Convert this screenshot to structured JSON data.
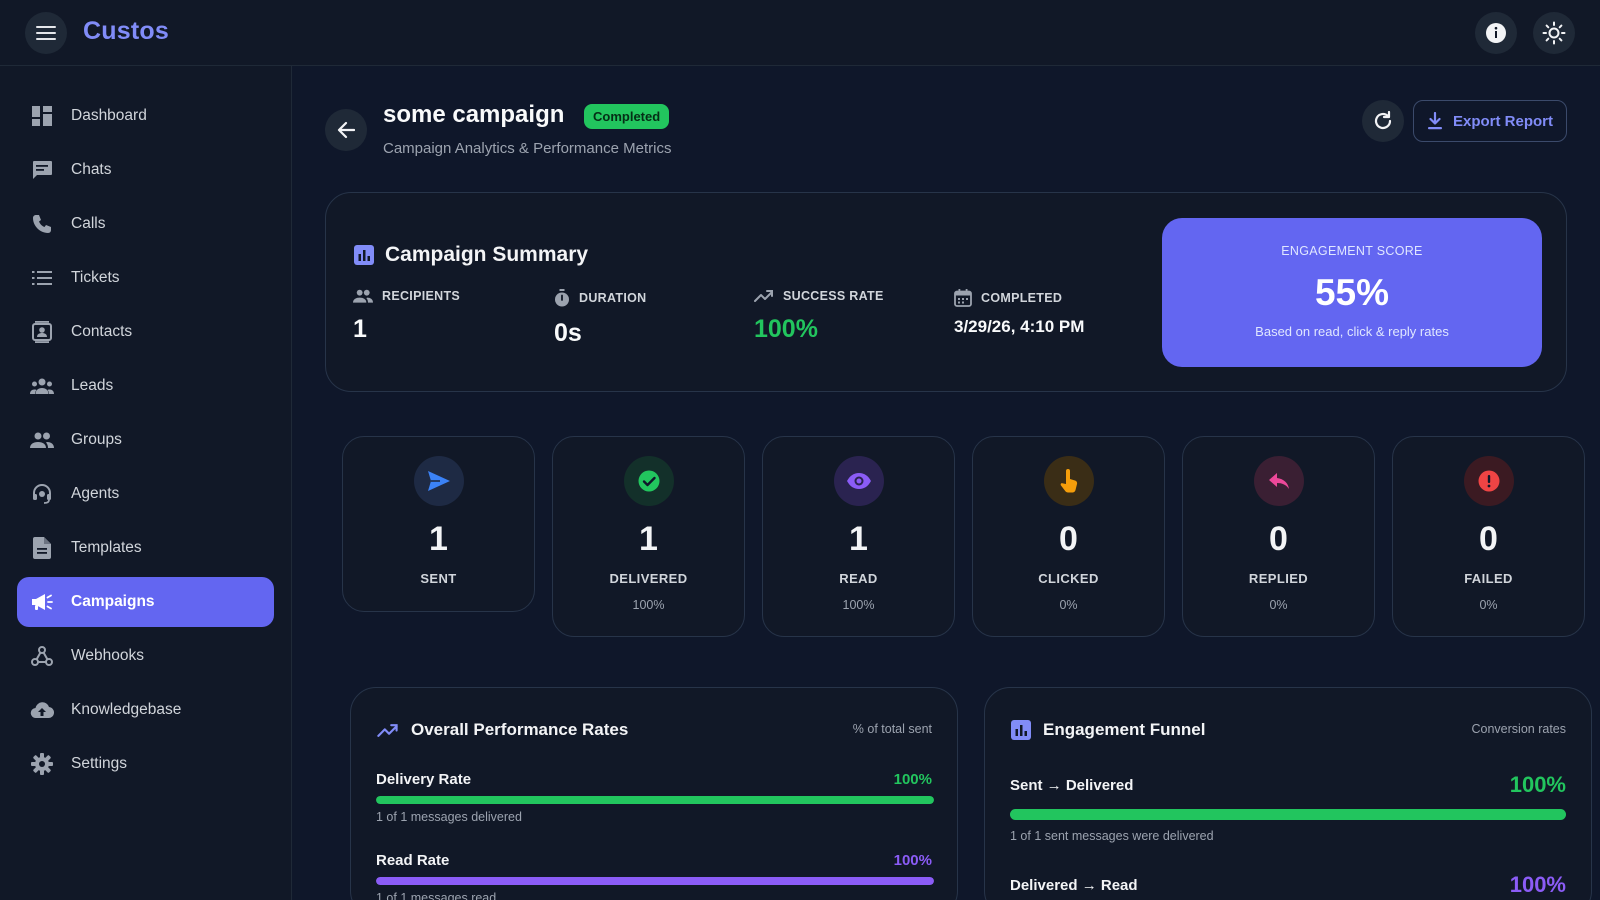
{
  "app": {
    "brand": "Custos"
  },
  "sidebar": {
    "items": [
      {
        "label": "Dashboard",
        "icon": "dashboard-icon"
      },
      {
        "label": "Chats",
        "icon": "chat-icon"
      },
      {
        "label": "Calls",
        "icon": "phone-icon"
      },
      {
        "label": "Tickets",
        "icon": "list-icon"
      },
      {
        "label": "Contacts",
        "icon": "contact-card-icon"
      },
      {
        "label": "Leads",
        "icon": "users-icon"
      },
      {
        "label": "Groups",
        "icon": "group-icon"
      },
      {
        "label": "Agents",
        "icon": "headset-icon"
      },
      {
        "label": "Templates",
        "icon": "document-icon"
      },
      {
        "label": "Campaigns",
        "icon": "megaphone-icon",
        "active": true
      },
      {
        "label": "Webhooks",
        "icon": "webhook-icon"
      },
      {
        "label": "Knowledgebase",
        "icon": "cloud-upload-icon"
      },
      {
        "label": "Settings",
        "icon": "gear-icon"
      }
    ]
  },
  "header": {
    "title": "some campaign",
    "status": "Completed",
    "subtitle": "Campaign Analytics & Performance Metrics",
    "export_label": "Export Report"
  },
  "summary": {
    "title": "Campaign Summary",
    "stats": {
      "recipients": {
        "label": "RECIPIENTS",
        "value": "1"
      },
      "duration": {
        "label": "DURATION",
        "value": "0s"
      },
      "success_rate": {
        "label": "SUCCESS RATE",
        "value": "100%"
      },
      "completed": {
        "label": "COMPLETED",
        "value": "3/29/26, 4:10 PM"
      }
    },
    "engagement": {
      "label": "ENGAGEMENT SCORE",
      "value": "55%",
      "note": "Based on read, click & reply rates"
    }
  },
  "metrics": [
    {
      "name": "SENT",
      "value": "1",
      "pct": "",
      "icon": "send-icon",
      "color": "#3b82f6"
    },
    {
      "name": "DELIVERED",
      "value": "1",
      "pct": "100%",
      "icon": "check-circle-icon",
      "color": "#22c55e"
    },
    {
      "name": "READ",
      "value": "1",
      "pct": "100%",
      "icon": "eye-icon",
      "color": "#8b5cf6"
    },
    {
      "name": "CLICKED",
      "value": "0",
      "pct": "0%",
      "icon": "pointer-icon",
      "color": "#f59e0b"
    },
    {
      "name": "REPLIED",
      "value": "0",
      "pct": "0%",
      "icon": "reply-icon",
      "color": "#ec4899"
    },
    {
      "name": "FAILED",
      "value": "0",
      "pct": "0%",
      "icon": "alert-icon",
      "color": "#ef4444"
    }
  ],
  "performance": {
    "title": "Overall Performance Rates",
    "note": "% of total sent",
    "rows": [
      {
        "label": "Delivery Rate",
        "value": "100%",
        "fill": 1.0,
        "color": "#22c55e",
        "note": "1 of 1 messages delivered"
      },
      {
        "label": "Read Rate",
        "value": "100%",
        "fill": 1.0,
        "color": "#8b5cf6",
        "note": "1 of 1 messages read"
      }
    ]
  },
  "funnel": {
    "title": "Engagement Funnel",
    "note": "Conversion rates",
    "rows": [
      {
        "label": "Sent → Delivered",
        "value": "100%",
        "fill": 1.0,
        "color": "#22c55e",
        "note": "1 of 1 sent messages were delivered"
      },
      {
        "label": "Delivered → Read",
        "value": "100%",
        "color": "#8b5cf6"
      }
    ]
  }
}
